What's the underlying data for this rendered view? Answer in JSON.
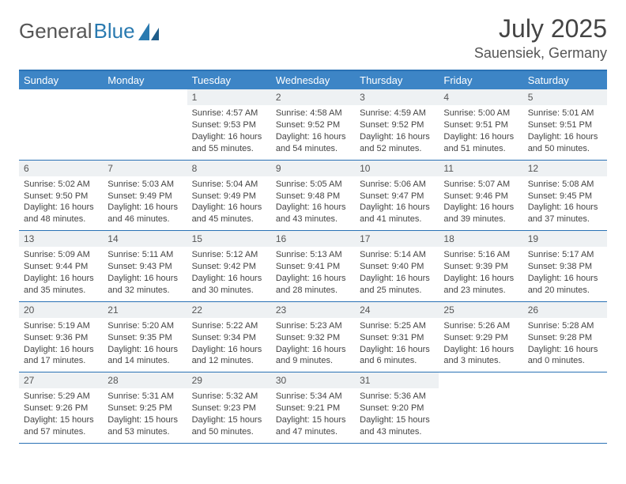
{
  "logo": {
    "text1": "General",
    "text2": "Blue"
  },
  "title": "July 2025",
  "location": "Sauensiek, Germany",
  "colors": {
    "header_bg": "#3d85c6",
    "border": "#2a72b5",
    "numbar_bg": "#eef1f3",
    "text": "#444444"
  },
  "day_names": [
    "Sunday",
    "Monday",
    "Tuesday",
    "Wednesday",
    "Thursday",
    "Friday",
    "Saturday"
  ],
  "weeks": [
    [
      null,
      null,
      {
        "n": "1",
        "sr": "Sunrise: 4:57 AM",
        "ss": "Sunset: 9:53 PM",
        "dl": "Daylight: 16 hours and 55 minutes."
      },
      {
        "n": "2",
        "sr": "Sunrise: 4:58 AM",
        "ss": "Sunset: 9:52 PM",
        "dl": "Daylight: 16 hours and 54 minutes."
      },
      {
        "n": "3",
        "sr": "Sunrise: 4:59 AM",
        "ss": "Sunset: 9:52 PM",
        "dl": "Daylight: 16 hours and 52 minutes."
      },
      {
        "n": "4",
        "sr": "Sunrise: 5:00 AM",
        "ss": "Sunset: 9:51 PM",
        "dl": "Daylight: 16 hours and 51 minutes."
      },
      {
        "n": "5",
        "sr": "Sunrise: 5:01 AM",
        "ss": "Sunset: 9:51 PM",
        "dl": "Daylight: 16 hours and 50 minutes."
      }
    ],
    [
      {
        "n": "6",
        "sr": "Sunrise: 5:02 AM",
        "ss": "Sunset: 9:50 PM",
        "dl": "Daylight: 16 hours and 48 minutes."
      },
      {
        "n": "7",
        "sr": "Sunrise: 5:03 AM",
        "ss": "Sunset: 9:49 PM",
        "dl": "Daylight: 16 hours and 46 minutes."
      },
      {
        "n": "8",
        "sr": "Sunrise: 5:04 AM",
        "ss": "Sunset: 9:49 PM",
        "dl": "Daylight: 16 hours and 45 minutes."
      },
      {
        "n": "9",
        "sr": "Sunrise: 5:05 AM",
        "ss": "Sunset: 9:48 PM",
        "dl": "Daylight: 16 hours and 43 minutes."
      },
      {
        "n": "10",
        "sr": "Sunrise: 5:06 AM",
        "ss": "Sunset: 9:47 PM",
        "dl": "Daylight: 16 hours and 41 minutes."
      },
      {
        "n": "11",
        "sr": "Sunrise: 5:07 AM",
        "ss": "Sunset: 9:46 PM",
        "dl": "Daylight: 16 hours and 39 minutes."
      },
      {
        "n": "12",
        "sr": "Sunrise: 5:08 AM",
        "ss": "Sunset: 9:45 PM",
        "dl": "Daylight: 16 hours and 37 minutes."
      }
    ],
    [
      {
        "n": "13",
        "sr": "Sunrise: 5:09 AM",
        "ss": "Sunset: 9:44 PM",
        "dl": "Daylight: 16 hours and 35 minutes."
      },
      {
        "n": "14",
        "sr": "Sunrise: 5:11 AM",
        "ss": "Sunset: 9:43 PM",
        "dl": "Daylight: 16 hours and 32 minutes."
      },
      {
        "n": "15",
        "sr": "Sunrise: 5:12 AM",
        "ss": "Sunset: 9:42 PM",
        "dl": "Daylight: 16 hours and 30 minutes."
      },
      {
        "n": "16",
        "sr": "Sunrise: 5:13 AM",
        "ss": "Sunset: 9:41 PM",
        "dl": "Daylight: 16 hours and 28 minutes."
      },
      {
        "n": "17",
        "sr": "Sunrise: 5:14 AM",
        "ss": "Sunset: 9:40 PM",
        "dl": "Daylight: 16 hours and 25 minutes."
      },
      {
        "n": "18",
        "sr": "Sunrise: 5:16 AM",
        "ss": "Sunset: 9:39 PM",
        "dl": "Daylight: 16 hours and 23 minutes."
      },
      {
        "n": "19",
        "sr": "Sunrise: 5:17 AM",
        "ss": "Sunset: 9:38 PM",
        "dl": "Daylight: 16 hours and 20 minutes."
      }
    ],
    [
      {
        "n": "20",
        "sr": "Sunrise: 5:19 AM",
        "ss": "Sunset: 9:36 PM",
        "dl": "Daylight: 16 hours and 17 minutes."
      },
      {
        "n": "21",
        "sr": "Sunrise: 5:20 AM",
        "ss": "Sunset: 9:35 PM",
        "dl": "Daylight: 16 hours and 14 minutes."
      },
      {
        "n": "22",
        "sr": "Sunrise: 5:22 AM",
        "ss": "Sunset: 9:34 PM",
        "dl": "Daylight: 16 hours and 12 minutes."
      },
      {
        "n": "23",
        "sr": "Sunrise: 5:23 AM",
        "ss": "Sunset: 9:32 PM",
        "dl": "Daylight: 16 hours and 9 minutes."
      },
      {
        "n": "24",
        "sr": "Sunrise: 5:25 AM",
        "ss": "Sunset: 9:31 PM",
        "dl": "Daylight: 16 hours and 6 minutes."
      },
      {
        "n": "25",
        "sr": "Sunrise: 5:26 AM",
        "ss": "Sunset: 9:29 PM",
        "dl": "Daylight: 16 hours and 3 minutes."
      },
      {
        "n": "26",
        "sr": "Sunrise: 5:28 AM",
        "ss": "Sunset: 9:28 PM",
        "dl": "Daylight: 16 hours and 0 minutes."
      }
    ],
    [
      {
        "n": "27",
        "sr": "Sunrise: 5:29 AM",
        "ss": "Sunset: 9:26 PM",
        "dl": "Daylight: 15 hours and 57 minutes."
      },
      {
        "n": "28",
        "sr": "Sunrise: 5:31 AM",
        "ss": "Sunset: 9:25 PM",
        "dl": "Daylight: 15 hours and 53 minutes."
      },
      {
        "n": "29",
        "sr": "Sunrise: 5:32 AM",
        "ss": "Sunset: 9:23 PM",
        "dl": "Daylight: 15 hours and 50 minutes."
      },
      {
        "n": "30",
        "sr": "Sunrise: 5:34 AM",
        "ss": "Sunset: 9:21 PM",
        "dl": "Daylight: 15 hours and 47 minutes."
      },
      {
        "n": "31",
        "sr": "Sunrise: 5:36 AM",
        "ss": "Sunset: 9:20 PM",
        "dl": "Daylight: 15 hours and 43 minutes."
      },
      null,
      null
    ]
  ]
}
